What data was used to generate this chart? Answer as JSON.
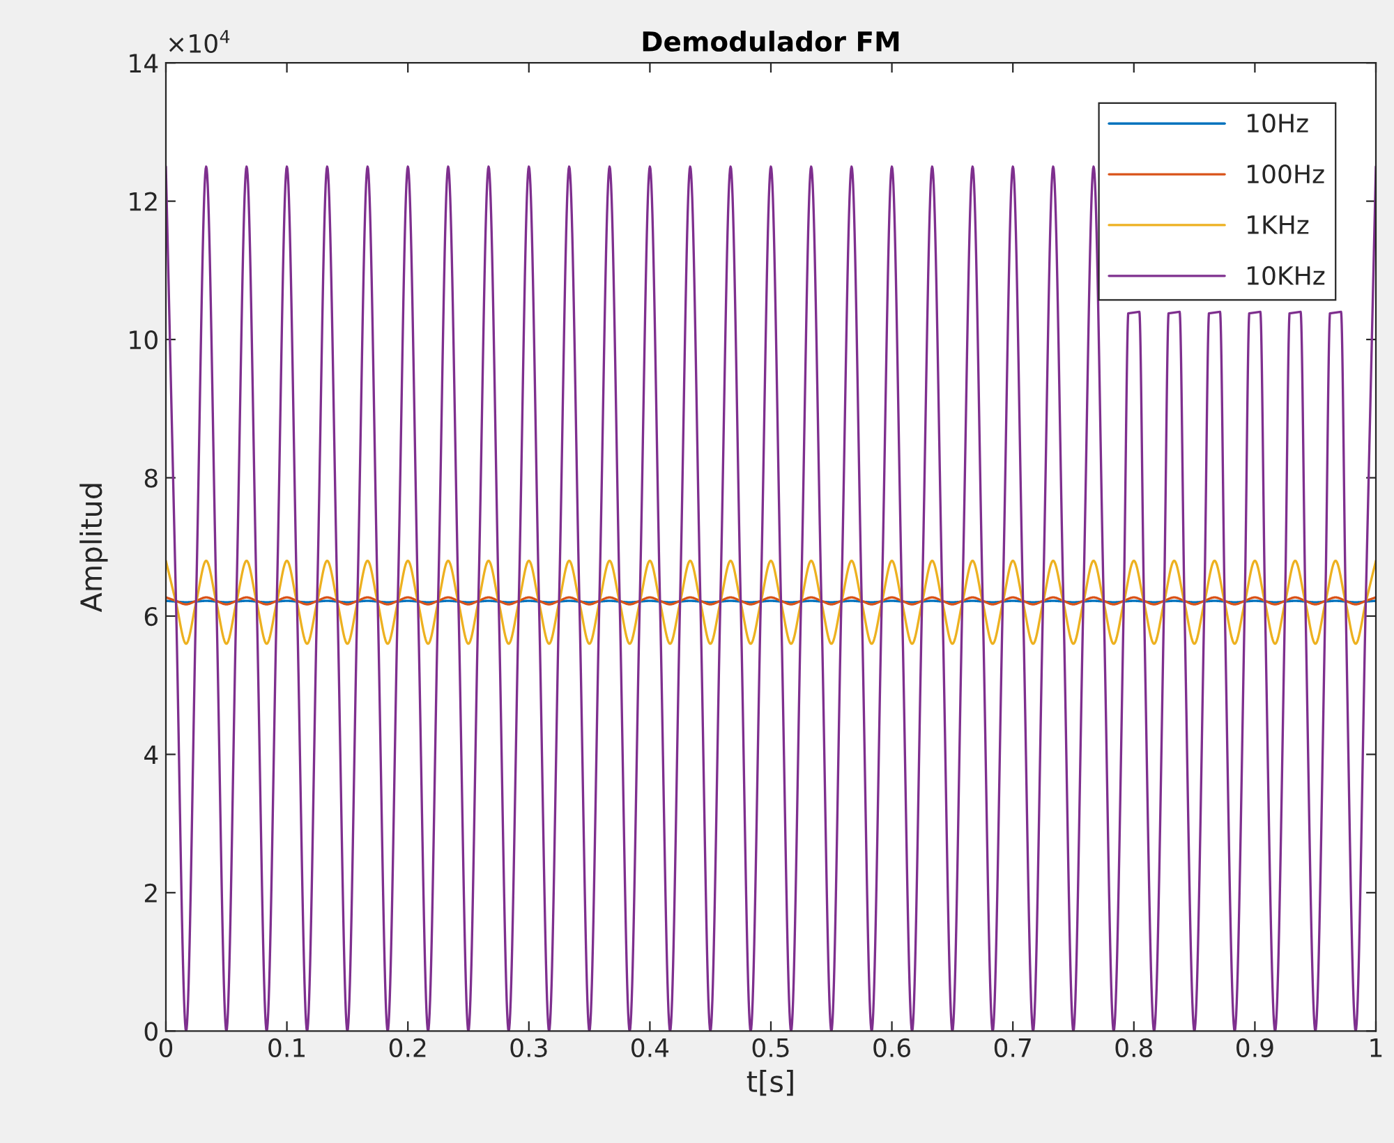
{
  "chart_data": {
    "type": "line",
    "title": "Demodulador FM",
    "xlabel": "t[s]",
    "ylabel": "Amplitud",
    "annotations": [
      "×10$^{4}$"
    ],
    "x": [
      0,
      0.0083,
      0.0167,
      0.025,
      0.0333,
      0.0417,
      0.05,
      0.0583,
      0.0667,
      0.075,
      0.0833,
      0.0917,
      0.1,
      0.1083,
      0.1167,
      0.125,
      0.1333,
      0.1417,
      0.15,
      0.1583,
      0.1667,
      0.175,
      0.1833,
      0.1917,
      0.2,
      0.2083,
      0.2167,
      0.225,
      0.2333,
      0.2417,
      0.25,
      0.2583,
      0.2667,
      0.275,
      0.2833,
      0.2917,
      0.3,
      0.3083,
      0.3167,
      0.325,
      0.3333,
      0.3417,
      0.35,
      0.3583,
      0.3667,
      0.375,
      0.3833,
      0.3917,
      0.4,
      0.4083,
      0.4167,
      0.425,
      0.4333,
      0.4417,
      0.45,
      0.4583,
      0.4667,
      0.475,
      0.4833,
      0.4917,
      0.5,
      0.5083,
      0.5167,
      0.525,
      0.5333,
      0.5417,
      0.55,
      0.5583,
      0.5667,
      0.575,
      0.5833,
      0.5917,
      0.6,
      0.6083,
      0.6167,
      0.625,
      0.6333,
      0.6417,
      0.65,
      0.6583,
      0.6667,
      0.675,
      0.6833,
      0.6917,
      0.7,
      0.7083,
      0.7167,
      0.725,
      0.7333,
      0.7417,
      0.75,
      0.7583,
      0.7667,
      0.775,
      0.7833,
      0.7917,
      0.8,
      0.8083,
      0.8167,
      0.825,
      0.8333,
      0.8417,
      0.85,
      0.8583,
      0.8667,
      0.875,
      0.8833,
      0.8917,
      0.9,
      0.9083,
      0.9167,
      0.925,
      0.9333,
      0.9417,
      0.95,
      0.9583,
      0.9667,
      0.975,
      0.9833,
      0.9917,
      1
    ],
    "series": [
      {
        "name": "10Hz",
        "color": "#0072bd",
        "values": [
          6.22,
          6.21,
          6.2,
          6.21,
          6.22,
          6.21,
          6.2,
          6.21,
          6.22,
          6.21,
          6.2,
          6.21,
          6.22,
          6.21,
          6.2,
          6.21,
          6.22,
          6.21,
          6.2,
          6.21,
          6.22,
          6.21,
          6.2,
          6.21,
          6.22,
          6.21,
          6.2,
          6.21,
          6.22,
          6.21,
          6.2,
          6.21,
          6.22,
          6.21,
          6.2,
          6.21,
          6.22,
          6.21,
          6.2,
          6.21,
          6.22,
          6.21,
          6.2,
          6.21,
          6.22,
          6.21,
          6.2,
          6.21,
          6.22,
          6.21,
          6.2,
          6.21,
          6.22,
          6.21,
          6.2,
          6.21,
          6.22,
          6.21,
          6.2,
          6.21,
          6.22,
          6.21,
          6.2,
          6.21,
          6.22,
          6.21,
          6.2,
          6.21,
          6.22,
          6.21,
          6.2,
          6.21,
          6.22,
          6.21,
          6.2,
          6.21,
          6.22,
          6.21,
          6.2,
          6.21,
          6.22,
          6.21,
          6.2,
          6.21,
          6.22,
          6.21,
          6.2,
          6.21,
          6.22,
          6.21,
          6.2,
          6.21,
          6.22,
          6.21,
          6.2,
          6.21,
          6.22,
          6.21,
          6.2,
          6.21,
          6.22,
          6.21,
          6.2,
          6.21,
          6.22,
          6.21,
          6.2,
          6.21,
          6.22,
          6.21,
          6.2,
          6.21,
          6.22,
          6.21,
          6.2,
          6.21,
          6.22,
          6.21,
          6.2,
          6.21,
          6.22
        ]
      },
      {
        "name": "100Hz",
        "color": "#d95319",
        "values": [
          6.27,
          6.22,
          6.17,
          6.22,
          6.27,
          6.22,
          6.17,
          6.22,
          6.27,
          6.22,
          6.17,
          6.22,
          6.27,
          6.22,
          6.17,
          6.22,
          6.27,
          6.22,
          6.17,
          6.22,
          6.27,
          6.22,
          6.17,
          6.22,
          6.27,
          6.22,
          6.17,
          6.22,
          6.27,
          6.22,
          6.17,
          6.22,
          6.27,
          6.22,
          6.17,
          6.22,
          6.27,
          6.22,
          6.17,
          6.22,
          6.27,
          6.22,
          6.17,
          6.22,
          6.27,
          6.22,
          6.17,
          6.22,
          6.27,
          6.22,
          6.17,
          6.22,
          6.27,
          6.22,
          6.17,
          6.22,
          6.27,
          6.22,
          6.17,
          6.22,
          6.27,
          6.22,
          6.17,
          6.22,
          6.27,
          6.22,
          6.17,
          6.22,
          6.27,
          6.22,
          6.17,
          6.22,
          6.27,
          6.22,
          6.17,
          6.22,
          6.27,
          6.22,
          6.17,
          6.22,
          6.27,
          6.22,
          6.17,
          6.22,
          6.27,
          6.22,
          6.17,
          6.22,
          6.27,
          6.22,
          6.17,
          6.22,
          6.27,
          6.22,
          6.17,
          6.22,
          6.27,
          6.22,
          6.17,
          6.22,
          6.27,
          6.22,
          6.17,
          6.22,
          6.27,
          6.22,
          6.17,
          6.22,
          6.27,
          6.22,
          6.17,
          6.22,
          6.27,
          6.22,
          6.17,
          6.22,
          6.27,
          6.22,
          6.17,
          6.22,
          6.27
        ]
      },
      {
        "name": "1KHz",
        "color": "#edb120",
        "values": [
          6.8,
          6.2,
          5.6,
          6.2,
          6.8,
          6.2,
          5.6,
          6.2,
          6.8,
          6.2,
          5.6,
          6.2,
          6.8,
          6.2,
          5.6,
          6.2,
          6.8,
          6.2,
          5.6,
          6.2,
          6.8,
          6.2,
          5.6,
          6.2,
          6.8,
          6.2,
          5.6,
          6.2,
          6.8,
          6.2,
          5.6,
          6.2,
          6.8,
          6.2,
          5.6,
          6.2,
          6.8,
          6.2,
          5.6,
          6.2,
          6.8,
          6.2,
          5.6,
          6.2,
          6.8,
          6.2,
          5.6,
          6.2,
          6.8,
          6.2,
          5.6,
          6.2,
          6.8,
          6.2,
          5.6,
          6.2,
          6.8,
          6.2,
          5.6,
          6.2,
          6.8,
          6.2,
          5.6,
          6.2,
          6.8,
          6.2,
          5.6,
          6.2,
          6.8,
          6.2,
          5.6,
          6.2,
          6.8,
          6.2,
          5.6,
          6.2,
          6.8,
          6.2,
          5.6,
          6.2,
          6.8,
          6.2,
          5.6,
          6.2,
          6.8,
          6.2,
          5.6,
          6.2,
          6.8,
          6.2,
          5.6,
          6.2,
          6.8,
          6.2,
          5.6,
          6.2,
          6.8,
          6.2,
          5.6,
          6.2,
          6.8,
          6.2,
          5.6,
          6.2,
          6.8,
          6.2,
          5.6,
          6.2,
          6.8,
          6.2,
          5.6,
          6.2,
          6.8,
          6.2,
          5.6,
          6.2,
          6.8,
          6.2,
          5.6,
          6.2,
          6.8
        ]
      },
      {
        "name": "10KHz",
        "color": "#7e2f8e",
        "x": [
          0,
          0.0083,
          0.0167,
          0.025,
          0.0333,
          0.0417,
          0.05,
          0.0583,
          0.0667,
          0.075,
          0.0833,
          0.0917,
          0.1,
          0.1083,
          0.1167,
          0.125,
          0.1333,
          0.1417,
          0.15,
          0.1583,
          0.1667,
          0.175,
          0.1833,
          0.1917,
          0.2,
          0.2083,
          0.2167,
          0.225,
          0.2333,
          0.2417,
          0.25,
          0.2583,
          0.2667,
          0.275,
          0.2833,
          0.2917,
          0.3,
          0.3083,
          0.3167,
          0.325,
          0.3333,
          0.3417,
          0.35,
          0.3583,
          0.3667,
          0.375,
          0.3833,
          0.3917,
          0.4,
          0.4083,
          0.4167,
          0.425,
          0.4333,
          0.4417,
          0.45,
          0.4583,
          0.4667,
          0.475,
          0.4833,
          0.4917,
          0.5,
          0.5083,
          0.5167,
          0.525,
          0.5333,
          0.5417,
          0.55,
          0.5583,
          0.5667,
          0.575,
          0.5833,
          0.5917,
          0.6,
          0.6083,
          0.6167,
          0.625,
          0.6333,
          0.6417,
          0.65,
          0.6583,
          0.6667,
          0.675,
          0.6833,
          0.6917,
          0.7,
          0.7083,
          0.7167,
          0.725,
          0.7333,
          0.7417,
          0.75,
          0.7583,
          0.7667,
          0.775,
          0.7833,
          0.7917,
          0.7955,
          0.8,
          0.8045,
          0.8083,
          0.8167,
          0.825,
          0.8288,
          0.8333,
          0.8378,
          0.8417,
          0.85,
          0.8583,
          0.8622,
          0.8667,
          0.8712,
          0.875,
          0.8833,
          0.8917,
          0.8955,
          0.9,
          0.9045,
          0.9083,
          0.9167,
          0.925,
          0.9288,
          0.9333,
          0.9378,
          0.9417,
          0.95,
          0.9583,
          0.9622,
          0.9667,
          0.9712,
          0.975,
          0.9833,
          0.9917,
          1
        ],
        "values": [
          12.5,
          6.25,
          0,
          6.25,
          12.5,
          6.25,
          0,
          6.25,
          12.5,
          6.25,
          0,
          6.25,
          12.5,
          6.25,
          0,
          6.25,
          12.5,
          6.25,
          0,
          6.25,
          12.5,
          6.25,
          0,
          6.25,
          12.5,
          6.25,
          0,
          6.25,
          12.5,
          6.25,
          0,
          6.25,
          12.5,
          6.25,
          0,
          6.25,
          12.5,
          6.25,
          0,
          6.25,
          12.5,
          6.25,
          0,
          6.25,
          12.5,
          6.25,
          0,
          6.25,
          12.5,
          6.25,
          0,
          6.25,
          12.5,
          6.25,
          0,
          6.25,
          12.5,
          6.25,
          0,
          6.25,
          12.5,
          6.25,
          0,
          6.25,
          12.5,
          6.25,
          0,
          6.25,
          12.5,
          6.25,
          0,
          6.25,
          12.5,
          6.25,
          0,
          6.25,
          12.5,
          6.25,
          0,
          6.25,
          12.5,
          6.25,
          0,
          6.25,
          12.5,
          6.25,
          0,
          6.25,
          12.5,
          6.25,
          0,
          6.25,
          12.5,
          6.25,
          0,
          6.25,
          10.4,
          null,
          10.4,
          6.25,
          0,
          6.25,
          10.4,
          null,
          10.4,
          6.25,
          0,
          6.25,
          10.4,
          null,
          10.4,
          6.25,
          0,
          6.25,
          10.4,
          null,
          10.4,
          6.25,
          0,
          6.25,
          10.4,
          null,
          10.4,
          6.25,
          0,
          6.25,
          10.4,
          null,
          10.4,
          6.25,
          0,
          6.25,
          12.5
        ]
      }
    ],
    "xlim": [
      0,
      1
    ],
    "xticks": [
      0,
      0.1,
      0.2,
      0.3,
      0.4,
      0.5,
      0.6,
      0.7,
      0.8,
      0.9,
      1
    ],
    "ylim": [
      0,
      14
    ],
    "yticks": [
      0,
      2,
      4,
      6,
      8,
      10,
      12,
      14
    ],
    "legend": "top right",
    "grid": false
  }
}
